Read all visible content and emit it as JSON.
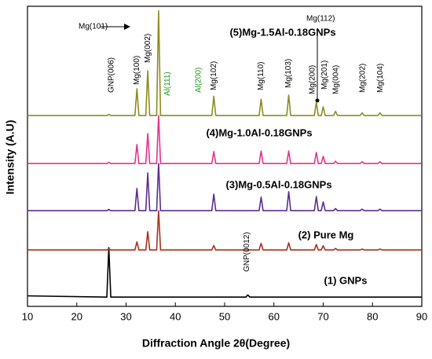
{
  "chart_data": {
    "type": "line",
    "xlabel": "Diffraction Angle 2θ(Degree)",
    "ylabel": "Intensity (A.U)",
    "xlim": [
      10,
      90
    ],
    "xticks": [
      10,
      20,
      30,
      40,
      50,
      60,
      70,
      80,
      90
    ],
    "ylim": [
      0,
      100
    ],
    "x": [
      10,
      26.1,
      26.5,
      26.9,
      31.8,
      32.2,
      32.6,
      34.0,
      34.4,
      34.8,
      36.2,
      36.6,
      37.0,
      47.4,
      47.8,
      48.2,
      54.3,
      54.7,
      55.1,
      57.0,
      57.4,
      57.8,
      62.6,
      63.0,
      63.4,
      68.2,
      68.6,
      69.0,
      69.6,
      70.0,
      70.4,
      72.1,
      72.5,
      72.9,
      77.5,
      77.9,
      78.3,
      81.1,
      81.5,
      81.9,
      90
    ],
    "series": [
      {
        "name": "(1) GNPs",
        "color": "#000000",
        "values": [
          3.5,
          3.1,
          19.6,
          3.1,
          3.1,
          3.1,
          3.1,
          3.1,
          3.1,
          3.1,
          3.1,
          3.1,
          3.1,
          3.1,
          3.1,
          3.1,
          3.1,
          3.8,
          3.1,
          3.1,
          3.1,
          3.1,
          3.1,
          3.1,
          3.1,
          3.1,
          3.1,
          3.1,
          3.1,
          3.1,
          3.1,
          3.1,
          3.1,
          3.1,
          3.1,
          3.1,
          3.1,
          3.1,
          3.1,
          3.1,
          3.1
        ]
      },
      {
        "name": "(2) Pure Mg",
        "color": "#a8321c",
        "values": [
          18.8,
          18.8,
          19.2,
          18.8,
          18.8,
          21.5,
          18.8,
          18.8,
          24.9,
          18.8,
          18.8,
          31.9,
          18.8,
          18.8,
          20.3,
          18.8,
          18.8,
          18.8,
          18.8,
          18.8,
          21.0,
          18.8,
          18.8,
          21.2,
          18.8,
          18.8,
          20.6,
          18.8,
          18.8,
          20.2,
          18.8,
          18.8,
          19.3,
          18.8,
          18.8,
          19.1,
          18.8,
          18.8,
          19.1,
          18.8,
          18.8
        ]
      },
      {
        "name": "(3)Mg-0.5Al-0.18GNPs",
        "color": "#5c2d91",
        "values": [
          31.9,
          31.9,
          32.3,
          31.9,
          31.9,
          39.3,
          31.9,
          31.9,
          44.5,
          31.9,
          31.9,
          47.6,
          31.9,
          31.9,
          37.4,
          31.9,
          31.9,
          31.9,
          31.9,
          31.9,
          36.4,
          31.9,
          31.9,
          38.2,
          31.9,
          31.9,
          36.6,
          31.9,
          31.9,
          34.8,
          31.9,
          31.9,
          32.6,
          31.9,
          31.9,
          32.4,
          31.9,
          31.9,
          32.4,
          31.9,
          31.9
        ]
      },
      {
        "name": "(4)Mg-1.0Al-0.18GNPs",
        "color": "#e8328c",
        "values": [
          47.6,
          47.6,
          48.0,
          47.6,
          47.6,
          53.9,
          47.6,
          47.6,
          57.6,
          47.6,
          47.6,
          63.6,
          47.6,
          47.6,
          51.6,
          47.6,
          47.6,
          47.6,
          47.6,
          47.6,
          51.8,
          47.6,
          47.6,
          51.8,
          47.6,
          47.6,
          51.3,
          47.6,
          47.6,
          50.0,
          47.6,
          47.6,
          48.4,
          47.6,
          47.6,
          48.2,
          47.6,
          47.6,
          48.2,
          47.6,
          47.6
        ]
      },
      {
        "name": "(5)Mg-1.5Al-0.18GNPs",
        "color": "#8e8c1f",
        "values": [
          63.6,
          63.6,
          64.0,
          63.6,
          63.6,
          72.5,
          63.6,
          63.6,
          78.5,
          63.6,
          63.6,
          98.5,
          63.6,
          63.6,
          70.0,
          63.6,
          63.6,
          63.6,
          63.6,
          63.6,
          69.0,
          63.6,
          63.6,
          70.4,
          63.6,
          63.6,
          68.0,
          63.6,
          63.6,
          66.5,
          63.6,
          63.6,
          65.0,
          63.6,
          63.6,
          64.5,
          63.6,
          63.6,
          64.5,
          63.6,
          63.6
        ]
      }
    ],
    "annotations": [
      {
        "text": "GNP(006)",
        "color": "#000000"
      },
      {
        "text": "Mg(100)",
        "color": "#000000"
      },
      {
        "text": "Mg(002)",
        "color": "#000000"
      },
      {
        "text": "Mg(101)",
        "color": "#000000"
      },
      {
        "text": "Al(111)",
        "color": "#1a9a1a"
      },
      {
        "text": "Al(200)",
        "color": "#1a9a1a"
      },
      {
        "text": "Mg(102)",
        "color": "#000000"
      },
      {
        "text": "Mg(110)",
        "color": "#000000"
      },
      {
        "text": "Mg(103)",
        "color": "#000000"
      },
      {
        "text": "Mg(200)",
        "color": "#000000"
      },
      {
        "text": "Mg(112)",
        "color": "#000000"
      },
      {
        "text": "Mg(201)",
        "color": "#000000"
      },
      {
        "text": "Mg(004)",
        "color": "#000000"
      },
      {
        "text": "Mg(202)",
        "color": "#000000"
      },
      {
        "text": "Mg(104)",
        "color": "#000000"
      },
      {
        "text": "GNP(0012)",
        "color": "#000000"
      }
    ]
  }
}
